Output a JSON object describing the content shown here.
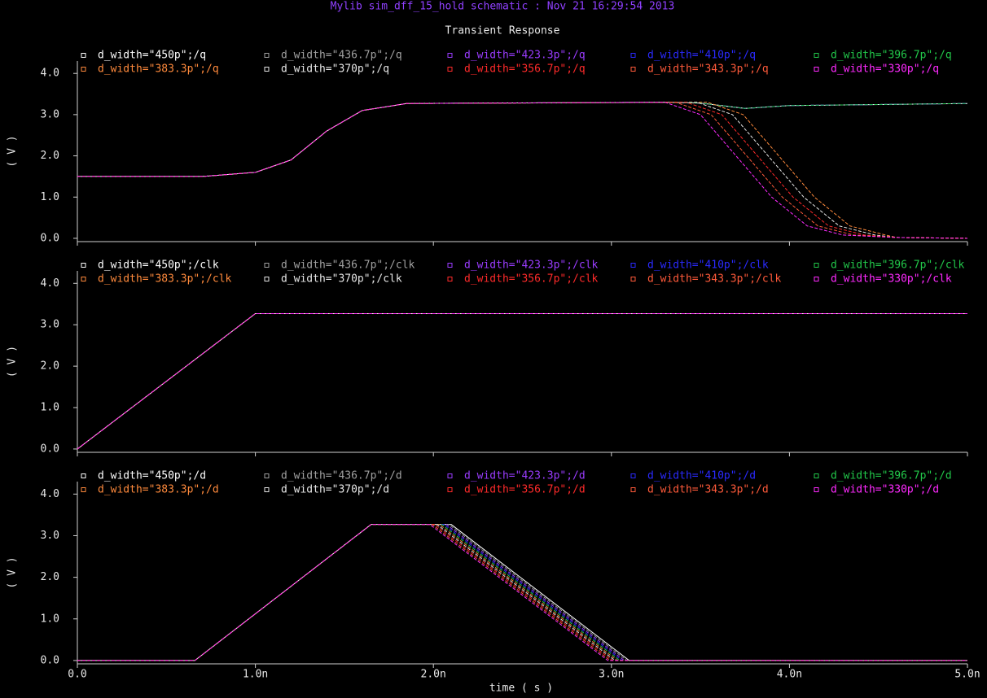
{
  "header": "Mylib sim_dff_15_hold schematic : Nov 21 16:29:54 2013",
  "chart_data": [
    {
      "type": "line",
      "title": "Transient Response",
      "y_label": "( V )",
      "xlim": [
        0,
        5e-09
      ],
      "xticks": [
        0,
        1e-09,
        2e-09,
        3e-09,
        4e-09,
        5e-09
      ],
      "ylim": [
        -0.08,
        4.3
      ],
      "yticks": [
        {
          "value": 0,
          "label": "0.0"
        },
        {
          "value": 1,
          "label": "1.0"
        },
        {
          "value": 2,
          "label": "2.0"
        },
        {
          "value": 3,
          "label": "3.0"
        },
        {
          "value": 4,
          "label": "4.0"
        }
      ],
      "series": [
        {
          "name": "d_width=\"450p\";/q",
          "color": "#ffffff",
          "x": [
            0,
            7e-10,
            1e-09,
            1.2e-09,
            1.4e-09,
            1.6e-09,
            1.85e-09,
            3.3e-09,
            3.5e-09,
            3.75e-09,
            4e-09,
            5e-09
          ],
          "values": [
            1.5,
            1.5,
            1.6,
            1.9,
            2.6,
            3.1,
            3.27,
            3.3,
            3.28,
            3.15,
            3.22,
            3.27
          ]
        },
        {
          "name": "d_width=\"436.7p\";/q",
          "color": "#a0a0a0",
          "x": [
            0,
            7e-10,
            1e-09,
            1.2e-09,
            1.4e-09,
            1.6e-09,
            1.85e-09,
            3.3e-09,
            3.5e-09,
            3.75e-09,
            4e-09,
            5e-09
          ],
          "values": [
            1.5,
            1.5,
            1.6,
            1.9,
            2.6,
            3.1,
            3.27,
            3.3,
            3.28,
            3.15,
            3.22,
            3.27
          ]
        },
        {
          "name": "d_width=\"423.3p\";/q",
          "color": "#9a3cff",
          "x": [
            0,
            7e-10,
            1e-09,
            1.2e-09,
            1.4e-09,
            1.6e-09,
            1.85e-09,
            3.3e-09,
            3.5e-09,
            3.75e-09,
            4e-09,
            5e-09
          ],
          "values": [
            1.5,
            1.5,
            1.6,
            1.9,
            2.6,
            3.1,
            3.27,
            3.3,
            3.28,
            3.15,
            3.22,
            3.27
          ]
        },
        {
          "name": "d_width=\"410p\";/q",
          "color": "#2a2aff",
          "x": [
            0,
            7e-10,
            1e-09,
            1.2e-09,
            1.4e-09,
            1.6e-09,
            1.85e-09,
            3.3e-09,
            3.5e-09,
            3.75e-09,
            4e-09,
            5e-09
          ],
          "values": [
            1.5,
            1.5,
            1.6,
            1.9,
            2.6,
            3.1,
            3.27,
            3.3,
            3.28,
            3.15,
            3.22,
            3.27
          ]
        },
        {
          "name": "d_width=\"396.7p\";/q",
          "color": "#22c84a",
          "x": [
            0,
            7e-10,
            1e-09,
            1.2e-09,
            1.4e-09,
            1.6e-09,
            1.85e-09,
            3.3e-09,
            3.5e-09,
            3.75e-09,
            4e-09,
            5e-09
          ],
          "values": [
            1.5,
            1.5,
            1.6,
            1.9,
            2.6,
            3.1,
            3.27,
            3.3,
            3.28,
            3.15,
            3.22,
            3.27
          ]
        },
        {
          "name": "d_width=\"383.3p\";/q",
          "color": "#ff8a3c",
          "x": [
            0,
            7e-10,
            1e-09,
            1.2e-09,
            1.4e-09,
            1.6e-09,
            1.85e-09,
            3.54e-09,
            3.74e-09,
            3.94e-09,
            4.14e-09,
            4.34e-09,
            4.54e-09,
            4.6e-09,
            5e-09
          ],
          "values": [
            1.5,
            1.5,
            1.6,
            1.9,
            2.6,
            3.1,
            3.27,
            3.3,
            3.0,
            2.0,
            1.0,
            0.3,
            0.08,
            0.02,
            0
          ]
        },
        {
          "name": "d_width=\"370p\";/q",
          "color": "#e6e6e6",
          "x": [
            0,
            7e-10,
            1e-09,
            1.2e-09,
            1.4e-09,
            1.6e-09,
            1.85e-09,
            3.48e-09,
            3.68e-09,
            3.88e-09,
            4.08e-09,
            4.28e-09,
            4.48e-09,
            4.6e-09,
            5e-09
          ],
          "values": [
            1.5,
            1.5,
            1.6,
            1.9,
            2.6,
            3.1,
            3.27,
            3.3,
            3.0,
            2.0,
            1.0,
            0.3,
            0.08,
            0.02,
            0
          ]
        },
        {
          "name": "d_width=\"356.7p\";/q",
          "color": "#ff2a2a",
          "x": [
            0,
            7e-10,
            1e-09,
            1.2e-09,
            1.4e-09,
            1.6e-09,
            1.85e-09,
            3.42e-09,
            3.62e-09,
            3.82e-09,
            4.02e-09,
            4.22e-09,
            4.42e-09,
            4.6e-09,
            5e-09
          ],
          "values": [
            1.5,
            1.5,
            1.6,
            1.9,
            2.6,
            3.1,
            3.27,
            3.3,
            3.0,
            2.0,
            1.0,
            0.3,
            0.08,
            0.02,
            0
          ]
        },
        {
          "name": "d_width=\"343.3p\";/q",
          "color": "#ff5a3a",
          "x": [
            0,
            7e-10,
            1e-09,
            1.2e-09,
            1.4e-09,
            1.6e-09,
            1.85e-09,
            3.36e-09,
            3.56e-09,
            3.76e-09,
            3.96e-09,
            4.16e-09,
            4.36e-09,
            4.6e-09,
            5e-09
          ],
          "values": [
            1.5,
            1.5,
            1.6,
            1.9,
            2.6,
            3.1,
            3.27,
            3.3,
            3.0,
            2.0,
            1.0,
            0.3,
            0.08,
            0.02,
            0
          ]
        },
        {
          "name": "d_width=\"330p\";/q",
          "color": "#ff2aff",
          "x": [
            0,
            7e-10,
            1e-09,
            1.2e-09,
            1.4e-09,
            1.6e-09,
            1.85e-09,
            3.3e-09,
            3.5e-09,
            3.7e-09,
            3.9e-09,
            4.1e-09,
            4.3e-09,
            4.6e-09,
            5e-09
          ],
          "values": [
            1.5,
            1.5,
            1.6,
            1.9,
            2.6,
            3.1,
            3.27,
            3.3,
            3.0,
            2.0,
            1.0,
            0.3,
            0.08,
            0.02,
            0
          ]
        }
      ]
    },
    {
      "type": "line",
      "y_label": "( V )",
      "xlim": [
        0,
        5e-09
      ],
      "xticks": [
        0,
        1e-09,
        2e-09,
        3e-09,
        4e-09,
        5e-09
      ],
      "ylim": [
        -0.08,
        4.3
      ],
      "yticks": [
        {
          "value": 0,
          "label": "0.0"
        },
        {
          "value": 1,
          "label": "1.0"
        },
        {
          "value": 2,
          "label": "2.0"
        },
        {
          "value": 3,
          "label": "3.0"
        },
        {
          "value": 4,
          "label": "4.0"
        }
      ],
      "series": [
        {
          "name": "d_width=\"450p\";/clk",
          "color": "#ffffff",
          "x": [
            0,
            1e-09,
            5e-09
          ],
          "values": [
            0,
            3.27,
            3.27
          ]
        },
        {
          "name": "d_width=\"436.7p\";/clk",
          "color": "#a0a0a0",
          "x": [
            0,
            1e-09,
            5e-09
          ],
          "values": [
            0,
            3.27,
            3.27
          ]
        },
        {
          "name": "d_width=\"423.3p\";/clk",
          "color": "#9a3cff",
          "x": [
            0,
            1e-09,
            5e-09
          ],
          "values": [
            0,
            3.27,
            3.27
          ]
        },
        {
          "name": "d_width=\"410p\";/clk",
          "color": "#2a2aff",
          "x": [
            0,
            1e-09,
            5e-09
          ],
          "values": [
            0,
            3.27,
            3.27
          ]
        },
        {
          "name": "d_width=\"396.7p\";/clk",
          "color": "#22c84a",
          "x": [
            0,
            1e-09,
            5e-09
          ],
          "values": [
            0,
            3.27,
            3.27
          ]
        },
        {
          "name": "d_width=\"383.3p\";/clk",
          "color": "#ff8a3c",
          "x": [
            0,
            1e-09,
            5e-09
          ],
          "values": [
            0,
            3.27,
            3.27
          ]
        },
        {
          "name": "d_width=\"370p\";/clk",
          "color": "#e6e6e6",
          "x": [
            0,
            1e-09,
            5e-09
          ],
          "values": [
            0,
            3.27,
            3.27
          ]
        },
        {
          "name": "d_width=\"356.7p\";/clk",
          "color": "#ff2a2a",
          "x": [
            0,
            1e-09,
            5e-09
          ],
          "values": [
            0,
            3.27,
            3.27
          ]
        },
        {
          "name": "d_width=\"343.3p\";/clk",
          "color": "#ff5a3a",
          "x": [
            0,
            1e-09,
            5e-09
          ],
          "values": [
            0,
            3.27,
            3.27
          ]
        },
        {
          "name": "d_width=\"330p\";/clk",
          "color": "#ff2aff",
          "x": [
            0,
            1e-09,
            5e-09
          ],
          "values": [
            0,
            3.27,
            3.27
          ]
        }
      ]
    },
    {
      "type": "line",
      "y_label": "( V )",
      "x_label": "time ( s )",
      "xlim": [
        0,
        5e-09
      ],
      "xticks": [
        {
          "value": 0,
          "label": "0.0"
        },
        {
          "value": 1e-09,
          "label": "1.0n"
        },
        {
          "value": 2e-09,
          "label": "2.0n"
        },
        {
          "value": 3e-09,
          "label": "3.0n"
        },
        {
          "value": 4e-09,
          "label": "4.0n"
        },
        {
          "value": 5e-09,
          "label": "5.0n"
        }
      ],
      "ylim": [
        -0.08,
        4.3
      ],
      "yticks": [
        {
          "value": 0,
          "label": "0.0"
        },
        {
          "value": 1,
          "label": "1.0"
        },
        {
          "value": 2,
          "label": "2.0"
        },
        {
          "value": 3,
          "label": "3.0"
        },
        {
          "value": 4,
          "label": "4.0"
        }
      ],
      "series": [
        {
          "name": "d_width=\"450p\";/d",
          "color": "#ffffff",
          "x": [
            0,
            6.6e-10,
            1.65e-09,
            2.1e-09,
            3.1e-09,
            5e-09
          ],
          "values": [
            0,
            0,
            3.27,
            3.27,
            0,
            0
          ]
        },
        {
          "name": "d_width=\"436.7p\";/d",
          "color": "#a0a0a0",
          "x": [
            0,
            6.6e-10,
            1.65e-09,
            2.087e-09,
            3.087e-09,
            5e-09
          ],
          "values": [
            0,
            0,
            3.27,
            3.27,
            0,
            0
          ]
        },
        {
          "name": "d_width=\"423.3p\";/d",
          "color": "#9a3cff",
          "x": [
            0,
            6.6e-10,
            1.65e-09,
            2.073e-09,
            3.073e-09,
            5e-09
          ],
          "values": [
            0,
            0,
            3.27,
            3.27,
            0,
            0
          ]
        },
        {
          "name": "d_width=\"410p\";/d",
          "color": "#2a2aff",
          "x": [
            0,
            6.6e-10,
            1.65e-09,
            2.06e-09,
            3.06e-09,
            5e-09
          ],
          "values": [
            0,
            0,
            3.27,
            3.27,
            0,
            0
          ]
        },
        {
          "name": "d_width=\"396.7p\";/d",
          "color": "#22c84a",
          "x": [
            0,
            6.6e-10,
            1.65e-09,
            2.047e-09,
            3.047e-09,
            5e-09
          ],
          "values": [
            0,
            0,
            3.27,
            3.27,
            0,
            0
          ]
        },
        {
          "name": "d_width=\"383.3p\";/d",
          "color": "#ff8a3c",
          "x": [
            0,
            6.6e-10,
            1.65e-09,
            2.033e-09,
            3.033e-09,
            5e-09
          ],
          "values": [
            0,
            0,
            3.27,
            3.27,
            0,
            0
          ]
        },
        {
          "name": "d_width=\"370p\";/d",
          "color": "#e6e6e6",
          "x": [
            0,
            6.6e-10,
            1.65e-09,
            2.02e-09,
            3.02e-09,
            5e-09
          ],
          "values": [
            0,
            0,
            3.27,
            3.27,
            0,
            0
          ]
        },
        {
          "name": "d_width=\"356.7p\";/d",
          "color": "#ff2a2a",
          "x": [
            0,
            6.6e-10,
            1.65e-09,
            2.007e-09,
            3.007e-09,
            5e-09
          ],
          "values": [
            0,
            0,
            3.27,
            3.27,
            0,
            0
          ]
        },
        {
          "name": "d_width=\"343.3p\";/d",
          "color": "#ff5a3a",
          "x": [
            0,
            6.6e-10,
            1.65e-09,
            1.993e-09,
            2.993e-09,
            5e-09
          ],
          "values": [
            0,
            0,
            3.27,
            3.27,
            0,
            0
          ]
        },
        {
          "name": "d_width=\"330p\";/d",
          "color": "#ff2aff",
          "x": [
            0,
            6.6e-10,
            1.65e-09,
            1.98e-09,
            2.98e-09,
            5e-09
          ],
          "values": [
            0,
            0,
            3.27,
            3.27,
            0,
            0
          ]
        }
      ]
    }
  ]
}
